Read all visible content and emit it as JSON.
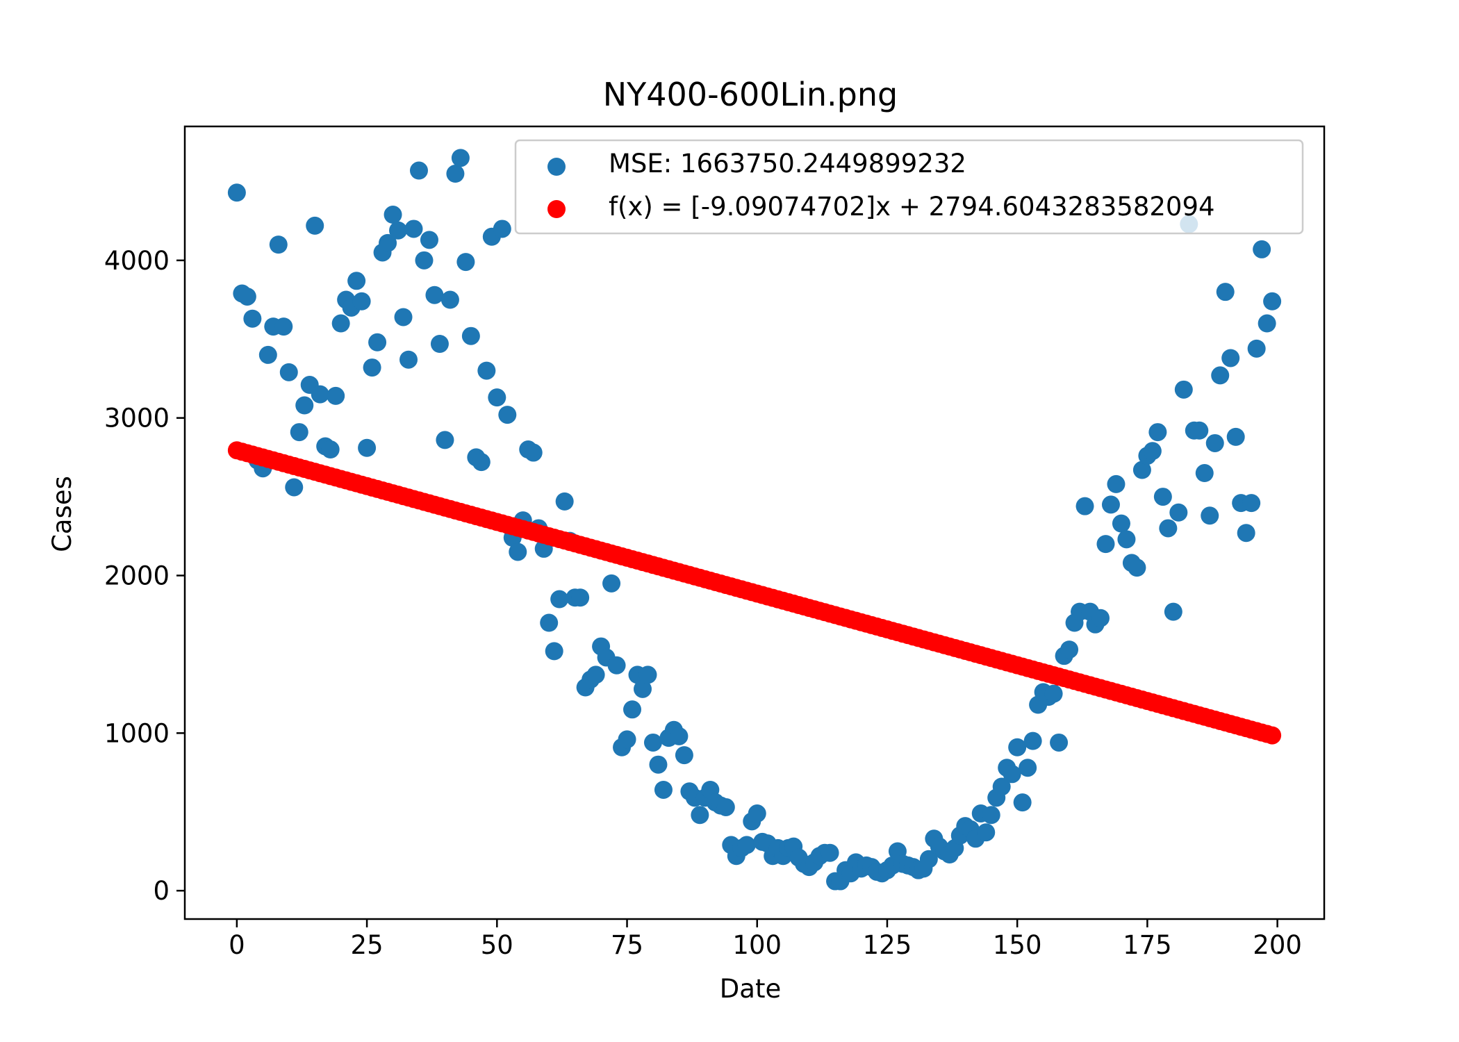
{
  "chart_data": {
    "type": "scatter",
    "title": "NY400-600Lin.png",
    "xlabel": "Date",
    "ylabel": "Cases",
    "xlim": [
      -10,
      209
    ],
    "ylim": [
      -180,
      4850
    ],
    "xticks": [
      0,
      25,
      50,
      75,
      100,
      125,
      150,
      175,
      200
    ],
    "yticks": [
      0,
      1000,
      2000,
      3000,
      4000
    ],
    "grid": false,
    "legend_position": "top-right",
    "series": [
      {
        "name": "MSE: 1663750.2449899232",
        "kind": "scatter",
        "color": "#1f77b4",
        "points": [
          [
            0,
            4430
          ],
          [
            1,
            3790
          ],
          [
            2,
            3770
          ],
          [
            3,
            3630
          ],
          [
            4,
            2730
          ],
          [
            5,
            2680
          ],
          [
            6,
            3400
          ],
          [
            7,
            3580
          ],
          [
            8,
            4100
          ],
          [
            9,
            3580
          ],
          [
            10,
            3290
          ],
          [
            11,
            2560
          ],
          [
            12,
            2910
          ],
          [
            13,
            3080
          ],
          [
            14,
            3210
          ],
          [
            15,
            4220
          ],
          [
            16,
            3150
          ],
          [
            17,
            2820
          ],
          [
            18,
            2800
          ],
          [
            19,
            3140
          ],
          [
            20,
            3600
          ],
          [
            21,
            3750
          ],
          [
            22,
            3700
          ],
          [
            23,
            3870
          ],
          [
            24,
            3740
          ],
          [
            25,
            2810
          ],
          [
            26,
            3320
          ],
          [
            27,
            3480
          ],
          [
            28,
            4050
          ],
          [
            29,
            4110
          ],
          [
            30,
            4290
          ],
          [
            31,
            4190
          ],
          [
            32,
            3640
          ],
          [
            33,
            3370
          ],
          [
            34,
            4200
          ],
          [
            35,
            4570
          ],
          [
            36,
            4000
          ],
          [
            37,
            4130
          ],
          [
            38,
            3780
          ],
          [
            39,
            3470
          ],
          [
            40,
            2860
          ],
          [
            41,
            3750
          ],
          [
            42,
            4550
          ],
          [
            43,
            4650
          ],
          [
            44,
            3990
          ],
          [
            45,
            3520
          ],
          [
            46,
            2750
          ],
          [
            47,
            2720
          ],
          [
            48,
            3300
          ],
          [
            49,
            4150
          ],
          [
            50,
            3130
          ],
          [
            51,
            4200
          ],
          [
            52,
            3020
          ],
          [
            53,
            2240
          ],
          [
            54,
            2150
          ],
          [
            55,
            2350
          ],
          [
            56,
            2800
          ],
          [
            57,
            2780
          ],
          [
            58,
            2300
          ],
          [
            59,
            2170
          ],
          [
            60,
            1700
          ],
          [
            61,
            1520
          ],
          [
            62,
            1850
          ],
          [
            63,
            2470
          ],
          [
            64,
            2220
          ],
          [
            65,
            1860
          ],
          [
            66,
            1860
          ],
          [
            67,
            1290
          ],
          [
            68,
            1340
          ],
          [
            69,
            1370
          ],
          [
            70,
            1550
          ],
          [
            71,
            1480
          ],
          [
            72,
            1950
          ],
          [
            73,
            1430
          ],
          [
            74,
            910
          ],
          [
            75,
            960
          ],
          [
            76,
            1150
          ],
          [
            77,
            1370
          ],
          [
            78,
            1280
          ],
          [
            79,
            1370
          ],
          [
            80,
            940
          ],
          [
            81,
            800
          ],
          [
            82,
            640
          ],
          [
            83,
            970
          ],
          [
            84,
            1020
          ],
          [
            85,
            980
          ],
          [
            86,
            860
          ],
          [
            87,
            630
          ],
          [
            88,
            590
          ],
          [
            89,
            480
          ],
          [
            90,
            590
          ],
          [
            91,
            640
          ],
          [
            92,
            560
          ],
          [
            93,
            540
          ],
          [
            94,
            530
          ],
          [
            95,
            290
          ],
          [
            96,
            220
          ],
          [
            97,
            270
          ],
          [
            98,
            290
          ],
          [
            99,
            440
          ],
          [
            100,
            490
          ],
          [
            101,
            310
          ],
          [
            102,
            300
          ],
          [
            103,
            220
          ],
          [
            104,
            270
          ],
          [
            105,
            220
          ],
          [
            106,
            270
          ],
          [
            107,
            280
          ],
          [
            108,
            210
          ],
          [
            109,
            170
          ],
          [
            110,
            150
          ],
          [
            111,
            180
          ],
          [
            112,
            220
          ],
          [
            113,
            240
          ],
          [
            114,
            240
          ],
          [
            115,
            60
          ],
          [
            116,
            60
          ],
          [
            117,
            130
          ],
          [
            118,
            110
          ],
          [
            119,
            180
          ],
          [
            120,
            140
          ],
          [
            121,
            160
          ],
          [
            122,
            150
          ],
          [
            123,
            120
          ],
          [
            124,
            110
          ],
          [
            125,
            130
          ],
          [
            126,
            160
          ],
          [
            127,
            250
          ],
          [
            128,
            170
          ],
          [
            129,
            160
          ],
          [
            130,
            150
          ],
          [
            131,
            130
          ],
          [
            132,
            140
          ],
          [
            133,
            200
          ],
          [
            134,
            330
          ],
          [
            135,
            280
          ],
          [
            136,
            250
          ],
          [
            137,
            230
          ],
          [
            138,
            270
          ],
          [
            139,
            350
          ],
          [
            140,
            410
          ],
          [
            141,
            390
          ],
          [
            142,
            330
          ],
          [
            143,
            490
          ],
          [
            144,
            370
          ],
          [
            145,
            480
          ],
          [
            146,
            590
          ],
          [
            147,
            660
          ],
          [
            148,
            780
          ],
          [
            149,
            740
          ],
          [
            150,
            910
          ],
          [
            151,
            560
          ],
          [
            152,
            780
          ],
          [
            153,
            950
          ],
          [
            154,
            1180
          ],
          [
            155,
            1260
          ],
          [
            156,
            1230
          ],
          [
            157,
            1250
          ],
          [
            158,
            940
          ],
          [
            159,
            1490
          ],
          [
            160,
            1530
          ],
          [
            161,
            1700
          ],
          [
            162,
            1770
          ],
          [
            163,
            2440
          ],
          [
            164,
            1770
          ],
          [
            165,
            1690
          ],
          [
            166,
            1730
          ],
          [
            167,
            2200
          ],
          [
            168,
            2450
          ],
          [
            169,
            2580
          ],
          [
            170,
            2330
          ],
          [
            171,
            2230
          ],
          [
            172,
            2080
          ],
          [
            173,
            2050
          ],
          [
            174,
            2670
          ],
          [
            175,
            2760
          ],
          [
            176,
            2790
          ],
          [
            177,
            2910
          ],
          [
            178,
            2500
          ],
          [
            179,
            2300
          ],
          [
            180,
            1770
          ],
          [
            181,
            2400
          ],
          [
            182,
            3180
          ],
          [
            183,
            4230
          ],
          [
            184,
            2920
          ],
          [
            185,
            2920
          ],
          [
            186,
            2650
          ],
          [
            187,
            2380
          ],
          [
            188,
            2840
          ],
          [
            189,
            3270
          ],
          [
            190,
            3800
          ],
          [
            191,
            3380
          ],
          [
            192,
            2880
          ],
          [
            193,
            2460
          ],
          [
            194,
            2270
          ],
          [
            195,
            2460
          ],
          [
            196,
            3440
          ],
          [
            197,
            4070
          ],
          [
            198,
            3600
          ],
          [
            199,
            3740
          ]
        ]
      },
      {
        "name": "f(x) = [-9.09074702]x + 2794.6043283582094",
        "kind": "scatter",
        "color": "#ff0000",
        "slope": -9.09074702,
        "intercept": 2794.6043283582094,
        "x_range": [
          0,
          199
        ]
      }
    ]
  }
}
